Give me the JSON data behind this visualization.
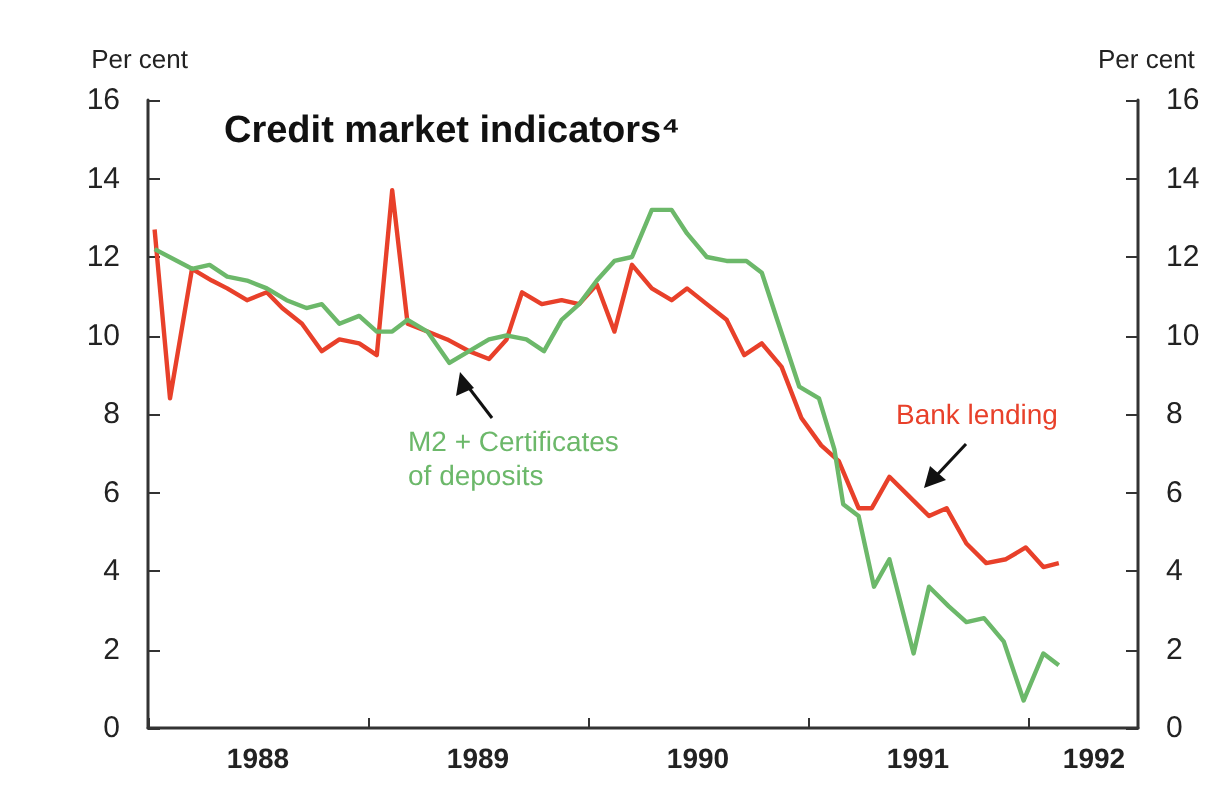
{
  "chart_data": {
    "type": "line",
    "title": "Credit market indicators⁴",
    "ylabel": "Per cent",
    "y2label": "Per cent",
    "xlim": [
      1988,
      1992.5
    ],
    "xticks": [
      {
        "value": 1988,
        "label": null
      },
      {
        "value": 1988.5,
        "label": "1988"
      },
      {
        "value": 1989,
        "label": null
      },
      {
        "value": 1989.5,
        "label": "1989"
      },
      {
        "value": 1990,
        "label": null
      },
      {
        "value": 1990.5,
        "label": "1990"
      },
      {
        "value": 1991,
        "label": null
      },
      {
        "value": 1991.5,
        "label": "1991"
      },
      {
        "value": 1992,
        "label": null
      },
      {
        "value": 1992.3,
        "label": "1992"
      }
    ],
    "ylim": [
      0,
      16
    ],
    "yticks": [
      0,
      2,
      4,
      6,
      8,
      10,
      12,
      14,
      16
    ],
    "y2lim": [
      0,
      16
    ],
    "y2ticks": [
      0,
      2,
      4,
      6,
      8,
      10,
      12,
      14,
      16
    ],
    "grid": false,
    "legend": false,
    "marker": "none",
    "line_style": "solid",
    "series": [
      {
        "name": "Bank lending",
        "color": "#e8402a",
        "x": [
          1988.03,
          1988.1,
          1988.2,
          1988.29,
          1988.36,
          1988.45,
          1988.54,
          1988.61,
          1988.7,
          1988.79,
          1988.87,
          1988.96,
          1989.04,
          1989.11,
          1989.18,
          1989.27,
          1989.36,
          1989.46,
          1989.55,
          1989.63,
          1989.7,
          1989.79,
          1989.88,
          1989.96,
          1990.04,
          1990.12,
          1990.2,
          1990.29,
          1990.38,
          1990.45,
          1990.54,
          1990.63,
          1990.71,
          1990.79,
          1990.88,
          1990.97,
          1991.06,
          1991.14,
          1991.23,
          1991.29,
          1991.37,
          1991.46,
          1991.55,
          1991.63,
          1991.72,
          1991.81,
          1991.9,
          1991.99,
          1992.07,
          1992.14
        ],
        "values": [
          12.7,
          8.4,
          11.7,
          11.4,
          11.2,
          10.9,
          11.1,
          10.7,
          10.3,
          9.6,
          9.9,
          9.8,
          9.5,
          13.7,
          10.3,
          10.1,
          9.9,
          9.6,
          9.4,
          9.9,
          11.1,
          10.8,
          10.9,
          10.8,
          11.3,
          10.1,
          11.8,
          11.2,
          10.9,
          11.2,
          10.8,
          10.4,
          9.5,
          9.8,
          9.2,
          7.9,
          7.2,
          6.8,
          5.6,
          5.6,
          6.4,
          5.9,
          5.4,
          5.6,
          4.7,
          4.2,
          4.3,
          4.6,
          4.1,
          4.2
        ]
      },
      {
        "name": "M2 + Certificates\nof deposits",
        "color": "#6cb86a",
        "x": [
          1988.03,
          1988.2,
          1988.28,
          1988.36,
          1988.45,
          1988.54,
          1988.63,
          1988.72,
          1988.79,
          1988.87,
          1988.96,
          1989.04,
          1989.11,
          1989.18,
          1989.27,
          1989.37,
          1989.46,
          1989.55,
          1989.63,
          1989.72,
          1989.8,
          1989.88,
          1989.96,
          1990.04,
          1990.12,
          1990.2,
          1990.29,
          1990.38,
          1990.45,
          1990.54,
          1990.63,
          1990.72,
          1990.79,
          1990.86,
          1990.96,
          1991.05,
          1991.12,
          1991.16,
          1991.23,
          1991.3,
          1991.37,
          1991.48,
          1991.55,
          1991.64,
          1991.72,
          1991.8,
          1991.89,
          1991.98,
          1992.07,
          1992.14
        ],
        "values": [
          12.2,
          11.7,
          11.8,
          11.5,
          11.4,
          11.2,
          10.9,
          10.7,
          10.8,
          10.3,
          10.5,
          10.1,
          10.1,
          10.4,
          10.1,
          9.3,
          9.6,
          9.9,
          10.0,
          9.9,
          9.6,
          10.4,
          10.8,
          11.4,
          11.9,
          12.0,
          13.2,
          13.2,
          12.6,
          12.0,
          11.9,
          11.9,
          11.6,
          10.4,
          8.7,
          8.4,
          7.1,
          5.7,
          5.4,
          3.6,
          4.3,
          1.9,
          3.6,
          3.1,
          2.7,
          2.8,
          2.2,
          0.7,
          1.9,
          1.6
        ]
      }
    ]
  }
}
